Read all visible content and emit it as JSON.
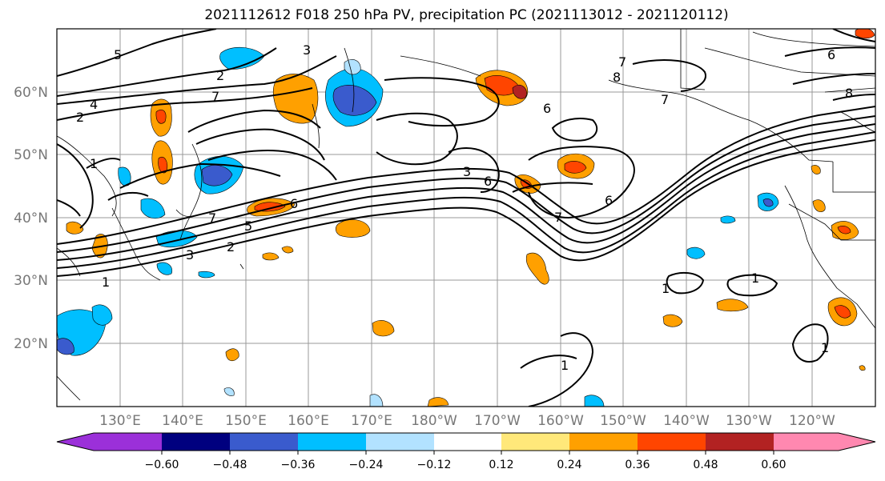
{
  "title": "2021112612 F018 250 hPa PV, precipitation PC (2021113012 - 2021120112)",
  "map": {
    "lon_labels": [
      "130°E",
      "140°E",
      "150°E",
      "160°E",
      "170°E",
      "180°W",
      "170°W",
      "160°W",
      "150°W",
      "140°W",
      "130°W",
      "120°W"
    ],
    "lat_labels": [
      "60°N",
      "50°N",
      "40°N",
      "30°N",
      "20°N"
    ],
    "contour_labels": [
      "1",
      "2",
      "3",
      "4",
      "5",
      "6",
      "7",
      "8"
    ],
    "contour_label_texts": [
      "4",
      "2",
      "1",
      "3",
      "5",
      "2",
      "7",
      "3",
      "6",
      "7",
      "7",
      "6",
      "8",
      "7",
      "6",
      "6",
      "1",
      "1",
      "1",
      "1",
      "5",
      "6",
      "8",
      "1",
      "2",
      "3",
      "7"
    ]
  },
  "colorbar": {
    "ticks": [
      "−0.60",
      "−0.48",
      "−0.36",
      "−0.24",
      "−0.12",
      "0.12",
      "0.24",
      "0.36",
      "0.48",
      "0.60"
    ],
    "colors": [
      "#9b30d9",
      "#00007f",
      "#3a5bcd",
      "#00bfff",
      "#b2e2ff",
      "#ffffff",
      "#ffe87a",
      "#ffa000",
      "#ff4500",
      "#b22222",
      "#ff88b0"
    ]
  }
}
